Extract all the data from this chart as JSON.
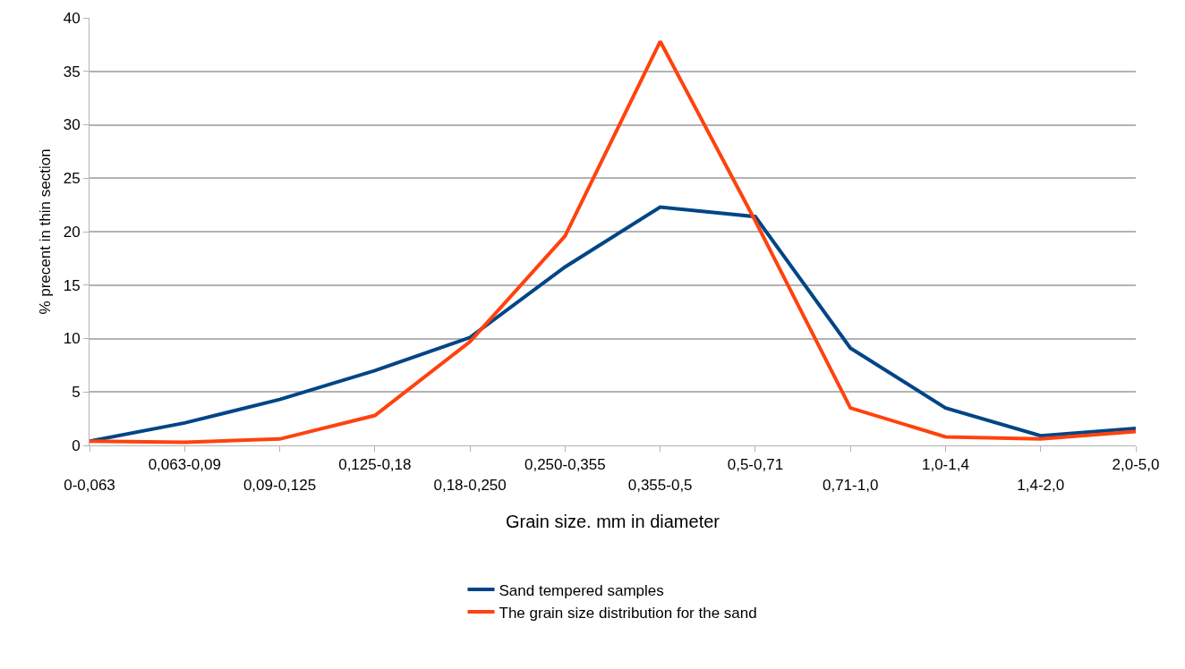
{
  "chart_data": {
    "type": "line",
    "xlabel": "Grain size. mm in diameter",
    "ylabel": "% precent in thin section",
    "categories": [
      "0-0,063",
      "0,063-0,09",
      "0,09-0,125",
      "0,125-0,18",
      "0,18-0,250",
      "0,250-0,355",
      "0,355-0,5",
      "0,5-0,71",
      "0,71-1,0",
      "1,0-1,4",
      "1,4-2,0",
      "2,0-5,0"
    ],
    "series": [
      {
        "name": "Sand tempered samples",
        "color": "#004586",
        "values": [
          0.4,
          2.1,
          4.3,
          7.0,
          10.1,
          16.7,
          22.3,
          21.4,
          9.1,
          3.5,
          0.9,
          1.6
        ]
      },
      {
        "name": "The grain size distribution for the sand",
        "color": "#ff420e",
        "values": [
          0.4,
          0.3,
          0.6,
          2.8,
          9.7,
          19.6,
          37.8,
          21.0,
          3.5,
          0.8,
          0.6,
          1.3
        ]
      }
    ],
    "ylim": [
      0,
      40
    ],
    "yticks": [
      0,
      5,
      10,
      15,
      20,
      25,
      30,
      35,
      40
    ],
    "grid": "y",
    "legend": "bottom",
    "marker": "none",
    "line_style": "solid"
  }
}
